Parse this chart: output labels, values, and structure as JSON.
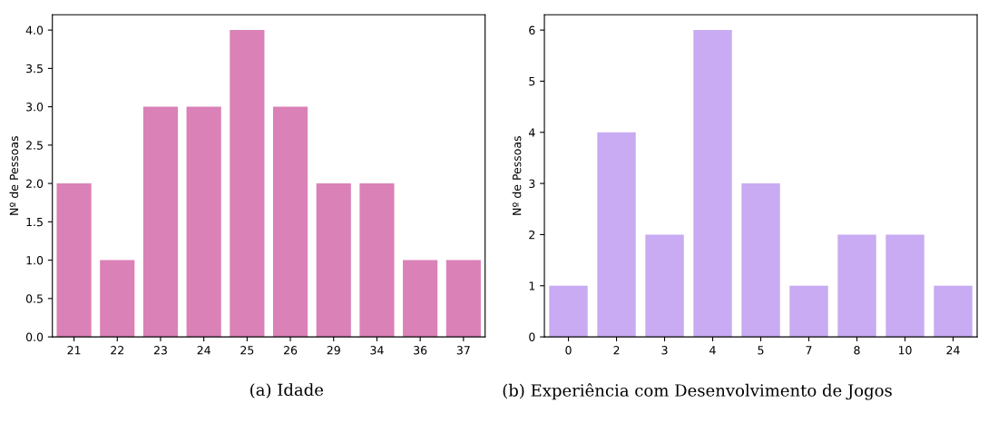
{
  "chart_data": [
    {
      "type": "bar",
      "categories": [
        "21",
        "22",
        "23",
        "24",
        "25",
        "26",
        "29",
        "34",
        "36",
        "37"
      ],
      "values": [
        2,
        1,
        3,
        3,
        4,
        3,
        2,
        2,
        1,
        1
      ],
      "color": "#da81b7",
      "ylabel": "Nº de Pessoas",
      "ylim": [
        0,
        4.2
      ],
      "yticks": [
        {
          "value": 0,
          "label": "0.0"
        },
        {
          "value": 0.5,
          "label": "0.5"
        },
        {
          "value": 1,
          "label": "1.0"
        },
        {
          "value": 1.5,
          "label": "1.5"
        },
        {
          "value": 2,
          "label": "2.0"
        },
        {
          "value": 2.5,
          "label": "2.5"
        },
        {
          "value": 3,
          "label": "3.0"
        },
        {
          "value": 3.5,
          "label": "3.5"
        },
        {
          "value": 4,
          "label": "4.0"
        }
      ],
      "grid": false,
      "annotations": [
        "(a) Idade"
      ]
    },
    {
      "type": "bar",
      "categories": [
        "0",
        "2",
        "3",
        "4",
        "5",
        "7",
        "8",
        "10",
        "24"
      ],
      "values": [
        1,
        4,
        2,
        6,
        3,
        1,
        2,
        2,
        1
      ],
      "color": "#c8abf2",
      "ylabel": "Nº de Pessoas",
      "ylim": [
        0,
        6.3
      ],
      "yticks": [
        0,
        1,
        2,
        3,
        4,
        5,
        6
      ],
      "grid": false,
      "annotations": [
        "(b) Experiência com Desenvolvimento de Jogos"
      ]
    }
  ]
}
